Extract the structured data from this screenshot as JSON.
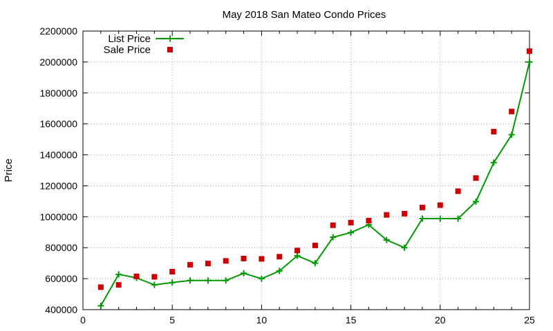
{
  "chart_data": {
    "type": "line",
    "title": "May 2018 San Mateo Condo Prices",
    "xlabel": "",
    "ylabel": "Price",
    "xlim": [
      0,
      25
    ],
    "ylim": [
      400000,
      2200000
    ],
    "xticks": [
      0,
      5,
      10,
      15,
      20,
      25
    ],
    "yticks": [
      400000,
      600000,
      800000,
      1000000,
      1200000,
      1400000,
      1600000,
      1800000,
      2000000,
      2200000
    ],
    "grid": true,
    "legend_position": "top-left",
    "x": [
      1,
      2,
      3,
      4,
      5,
      6,
      7,
      8,
      9,
      10,
      11,
      12,
      13,
      14,
      15,
      16,
      17,
      18,
      19,
      20,
      21,
      22,
      23,
      24,
      25
    ],
    "series": [
      {
        "name": "List Price",
        "style": "line-plus",
        "color": "#009900",
        "values": [
          425000,
          628000,
          605000,
          560000,
          575000,
          588000,
          588000,
          588000,
          635000,
          600000,
          650000,
          748000,
          700000,
          868000,
          898000,
          948000,
          850000,
          800000,
          988000,
          988000,
          988000,
          1098000,
          1350000,
          1530000,
          2000000
        ]
      },
      {
        "name": "Sale Price",
        "style": "square",
        "color": "#cc0000",
        "values": [
          545000,
          560000,
          615000,
          612000,
          645000,
          690000,
          698000,
          715000,
          730000,
          728000,
          742000,
          782000,
          815000,
          945000,
          962000,
          975000,
          1012000,
          1020000,
          1060000,
          1075000,
          1165000,
          1250000,
          1550000,
          1680000,
          2070000
        ]
      }
    ]
  }
}
